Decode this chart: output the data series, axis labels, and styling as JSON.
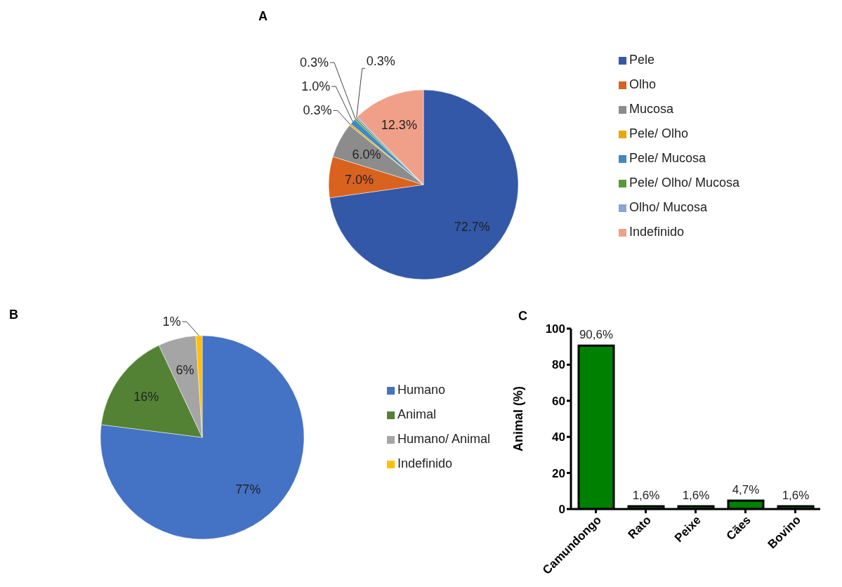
{
  "chart_data": [
    {
      "type": "pie",
      "title": "A",
      "categories": [
        "Pele",
        "Olho",
        "Mucosa",
        "Pele/ Olho",
        "Pele/ Mucosa",
        "Pele/ Olho/ Mucosa",
        "Olho/ Mucosa",
        "Indefinido"
      ],
      "values": [
        72.7,
        7.0,
        6.0,
        0.3,
        1.0,
        0.3,
        0.3,
        12.3
      ],
      "colors": [
        "#3358a8",
        "#d9621f",
        "#8c8c8c",
        "#e8a800",
        "#3f8ac2",
        "#5a9a35",
        "#8aa3d8",
        "#f0a088"
      ],
      "value_labels": [
        "72.7%",
        "7.0%",
        "6.0%",
        "0.3%",
        "1.0%",
        "0.3%",
        "0.3%",
        "12.3%"
      ],
      "legend": "right"
    },
    {
      "type": "pie",
      "title": "B",
      "categories": [
        "Humano",
        "Animal",
        "Humano/ Animal",
        "Indefinido"
      ],
      "values": [
        77,
        16,
        6,
        1
      ],
      "colors": [
        "#4472c4",
        "#548235",
        "#a5a5a5",
        "#ffc000"
      ],
      "value_labels": [
        "77%",
        "16%",
        "6%",
        "1%"
      ],
      "legend": "right"
    },
    {
      "type": "bar",
      "title": "C",
      "categories": [
        "Camundongo",
        "Rato",
        "Peixe",
        "Cães",
        "Bovino"
      ],
      "values": [
        90.6,
        1.6,
        1.6,
        4.7,
        1.6
      ],
      "color": "#008000",
      "value_labels": [
        "90,6%",
        "1,6%",
        "1,6%",
        "4,7%",
        "1,6%"
      ],
      "ylabel": "Animal (%)",
      "ylim": [
        0,
        100
      ],
      "yticks": [
        0,
        20,
        40,
        60,
        80,
        100
      ],
      "grid": false,
      "legend": false
    }
  ]
}
